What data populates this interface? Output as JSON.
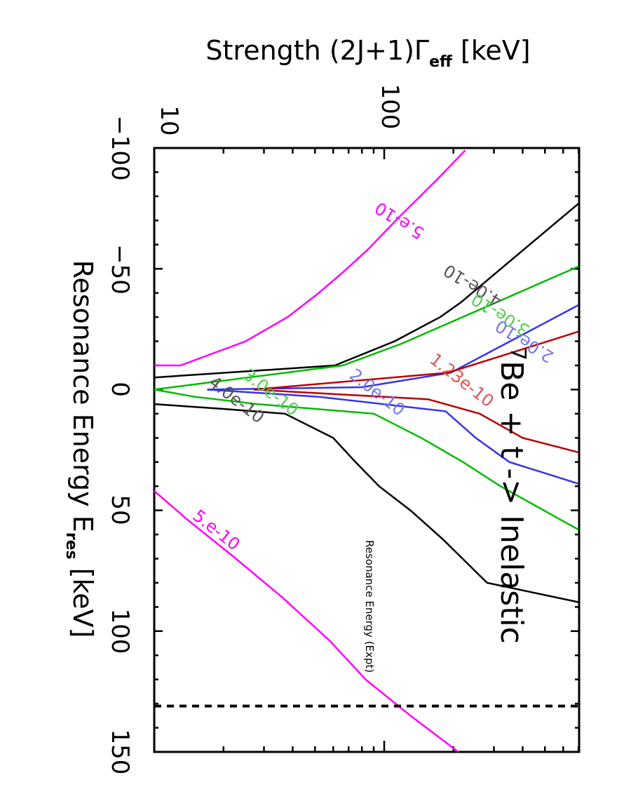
{
  "figure": {
    "orientation": "rotated 90 degrees clockwise",
    "strength_axis_label": "Strength  (2J+1)Γ",
    "strength_axis_subscript": "eff",
    "strength_axis_units": " [keV]",
    "energy_axis_label": "Resonance Energy E",
    "energy_axis_subscript": "res",
    "energy_axis_units": " [keV]",
    "reaction_label_sup": "7",
    "reaction_label": "Be + t -> Inelastic",
    "expt_line_label": "Resonance Energy (Expt)"
  },
  "chart_data": {
    "type": "line",
    "subtype": "contour",
    "title": "7Be + t -> Inelastic",
    "xlabel": "Resonance Energy E_res [keV]",
    "ylabel": "Strength (2J+1)Γ_eff [keV]",
    "xlim": [
      -100,
      150
    ],
    "ylim": [
      10,
      700
    ],
    "yscale": "log",
    "x_ticks": [
      -100,
      -50,
      0,
      50,
      100,
      150
    ],
    "y_ticks": [
      10,
      100
    ],
    "grid": false,
    "colors": {
      "5.e-10": "#ff00ff",
      "4.0e-10": "#000000",
      "3.0e-10": "#00bb00",
      "2.0e-10": "#3333ee",
      "1.23e-10": "#bb0000",
      "expt": "#000000"
    },
    "series": [
      {
        "name": "5.e-10",
        "branch": "low-energy",
        "color": "#ff00ff",
        "points": [
          [
            -10,
            10
          ],
          [
            -10,
            13
          ],
          [
            -20,
            25
          ],
          [
            -30,
            38
          ],
          [
            -40,
            52
          ],
          [
            -49,
            67
          ],
          [
            -58,
            85
          ],
          [
            -71,
            115
          ],
          [
            -87,
            170
          ],
          [
            -99,
            225
          ]
        ]
      },
      {
        "name": "5.e-10",
        "branch": "high-energy",
        "color": "#ff00ff",
        "points": [
          [
            42,
            10
          ],
          [
            54,
            14
          ],
          [
            69,
            22
          ],
          [
            86,
            36
          ],
          [
            104,
            58
          ],
          [
            120,
            83
          ],
          [
            135,
            130
          ],
          [
            150,
            210
          ]
        ]
      },
      {
        "name": "4.0e-10",
        "branch": "low-energy",
        "color": "#000000",
        "points": [
          [
            -5,
            10
          ],
          [
            -10,
            61
          ],
          [
            -20,
            111
          ],
          [
            -30,
            175
          ],
          [
            -36,
            215
          ],
          [
            -77,
            700
          ]
        ]
      },
      {
        "name": "4.0e-10",
        "branch": "high-energy",
        "color": "#000000",
        "points": [
          [
            6,
            10
          ],
          [
            8,
            20
          ],
          [
            10,
            37
          ],
          [
            20,
            60
          ],
          [
            30,
            75
          ],
          [
            40,
            95
          ],
          [
            50,
            130
          ],
          [
            62,
            180
          ],
          [
            80,
            280
          ],
          [
            88,
            700
          ]
        ]
      },
      {
        "name": "3.0e-10",
        "branch": "low-energy",
        "color": "#00bb00",
        "points": [
          [
            0,
            10
          ],
          [
            -10,
            66
          ],
          [
            -19,
            119
          ],
          [
            -51,
            700
          ]
        ]
      },
      {
        "name": "3.0e-10",
        "branch": "high-energy",
        "color": "#00bb00",
        "points": [
          [
            0,
            10
          ],
          [
            3,
            15
          ],
          [
            6,
            28
          ],
          [
            10,
            90
          ],
          [
            20,
            145
          ],
          [
            30,
            220
          ],
          [
            40,
            320
          ],
          [
            58,
            700
          ]
        ]
      },
      {
        "name": "2.0e-10",
        "branch": "low-energy",
        "color": "#3333ee",
        "points": [
          [
            0,
            17
          ],
          [
            -1,
            80
          ],
          [
            -7,
            195
          ],
          [
            -35,
            700
          ]
        ]
      },
      {
        "name": "2.0e-10",
        "branch": "high-energy",
        "color": "#3333ee",
        "points": [
          [
            0,
            17
          ],
          [
            3,
            52
          ],
          [
            9,
            185
          ],
          [
            20,
            250
          ],
          [
            30,
            350
          ],
          [
            39,
            700
          ]
        ]
      },
      {
        "name": "1.23e-10",
        "branch": "low-energy",
        "color": "#bb0000",
        "points": [
          [
            0,
            27
          ],
          [
            -7,
            190
          ],
          [
            -24,
            700
          ]
        ]
      },
      {
        "name": "1.23e-10",
        "branch": "high-energy",
        "color": "#bb0000",
        "points": [
          [
            0,
            27
          ],
          [
            4,
            155
          ],
          [
            10,
            260
          ],
          [
            20,
            400
          ],
          [
            26,
            700
          ]
        ]
      }
    ],
    "contour_labels": [
      {
        "text": "5.e-10",
        "color": "#ff00ff",
        "at": [
          -72,
          120
        ]
      },
      {
        "text": "5.e-10",
        "color": "#ff00ff",
        "at": [
          60,
          18
        ]
      },
      {
        "text": "4.0e-10",
        "color": "#555555",
        "at": [
          -45,
          250
        ]
      },
      {
        "text": "4.0e-10",
        "color": "#555555",
        "at": [
          6,
          22
        ]
      },
      {
        "text": "3.0e-10",
        "color": "#55cc55",
        "at": [
          -33,
          330
        ]
      },
      {
        "text": "3.0e-10",
        "color": "#55cc55",
        "at": [
          3,
          31
        ]
      },
      {
        "text": "2.0e-10",
        "color": "#7777ee",
        "at": [
          -22,
          420
        ]
      },
      {
        "text": "2.0e-10",
        "color": "#7777ee",
        "at": [
          3,
          90
        ]
      },
      {
        "text": "1.23e-10",
        "color": "#dd5555",
        "at": [
          -2,
          210
        ]
      }
    ],
    "reference_lines": [
      {
        "type": "dashed",
        "axis": "energy",
        "value": 131,
        "label": "Resonance Energy (Expt)",
        "color": "#000000"
      }
    ],
    "annotations": [
      {
        "text": "7Be + t -> Inelastic",
        "at": [
          45,
          450
        ]
      }
    ]
  }
}
